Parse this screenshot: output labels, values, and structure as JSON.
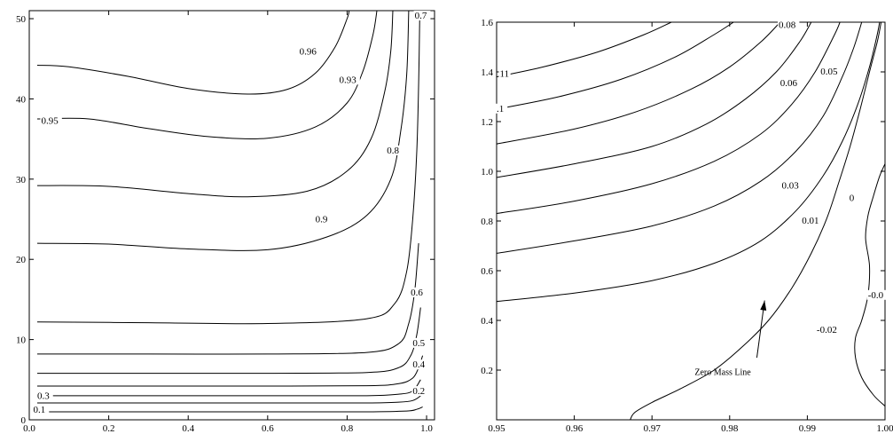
{
  "chart_data": [
    {
      "type": "line",
      "title": "",
      "xlabel": "",
      "ylabel": "",
      "xlim": [
        0,
        1.02
      ],
      "ylim": [
        0,
        51
      ],
      "x_ticks": [
        "0.0",
        "0.2",
        "0.4",
        "0.6",
        "0.8",
        "1.0"
      ],
      "y_ticks": [
        "0",
        "10",
        "20",
        "30",
        "40",
        "50"
      ],
      "grid": false,
      "series": [
        {
          "label": "0.1",
          "points": [
            [
              0.02,
              1.0
            ],
            [
              0.3,
              1.0
            ],
            [
              0.6,
              1.0
            ],
            [
              0.85,
              1.0
            ],
            [
              0.95,
              1.1
            ],
            [
              0.975,
              1.3
            ],
            [
              0.99,
              1.6
            ]
          ]
        },
        {
          "label": "0.2",
          "points": [
            [
              0.02,
              2.1
            ],
            [
              0.3,
              2.1
            ],
            [
              0.6,
              2.1
            ],
            [
              0.85,
              2.1
            ],
            [
              0.93,
              2.2
            ],
            [
              0.965,
              2.4
            ],
            [
              0.985,
              3.0
            ],
            [
              0.99,
              3.5
            ]
          ]
        },
        {
          "label": "0.3",
          "points": [
            [
              0.02,
              3.0
            ],
            [
              0.3,
              3.0
            ],
            [
              0.6,
              3.0
            ],
            [
              0.85,
              3.0
            ],
            [
              0.93,
              3.2
            ],
            [
              0.965,
              3.6
            ],
            [
              0.985,
              5.0
            ]
          ]
        },
        {
          "label": "0.4",
          "points": [
            [
              0.02,
              4.2
            ],
            [
              0.3,
              4.2
            ],
            [
              0.6,
              4.2
            ],
            [
              0.85,
              4.25
            ],
            [
              0.93,
              4.5
            ],
            [
              0.965,
              5.2
            ],
            [
              0.98,
              6.5
            ],
            [
              0.99,
              8
            ]
          ]
        },
        {
          "label": "0.5",
          "points": [
            [
              0.02,
              5.8
            ],
            [
              0.3,
              5.8
            ],
            [
              0.6,
              5.8
            ],
            [
              0.85,
              5.9
            ],
            [
              0.93,
              6.5
            ],
            [
              0.96,
              8.0
            ],
            [
              0.975,
              10.5
            ],
            [
              0.985,
              14
            ]
          ]
        },
        {
          "label": "",
          "points": [
            [
              0.02,
              8.2
            ],
            [
              0.3,
              8.2
            ],
            [
              0.6,
              8.2
            ],
            [
              0.85,
              8.4
            ],
            [
              0.93,
              9.5
            ],
            [
              0.955,
              12.0
            ],
            [
              0.97,
              16
            ],
            [
              0.98,
              22
            ]
          ]
        },
        {
          "label": "0.6",
          "points": [
            [
              0.02,
              12.2
            ],
            [
              0.3,
              12.1
            ],
            [
              0.6,
              12.0
            ],
            [
              0.85,
              12.6
            ],
            [
              0.92,
              14.5
            ],
            [
              0.95,
              18.5
            ],
            [
              0.965,
              25
            ],
            [
              0.975,
              33
            ],
            [
              0.98,
              42
            ],
            [
              0.983,
              51
            ]
          ]
        },
        {
          "label": "0.7",
          "points": [
            [
              0.02,
              22.0
            ],
            [
              0.2,
              21.9
            ],
            [
              0.4,
              21.3
            ],
            [
              0.6,
              21.2
            ],
            [
              0.75,
              22.8
            ],
            [
              0.85,
              25.5
            ],
            [
              0.91,
              30
            ],
            [
              0.935,
              36
            ],
            [
              0.95,
              43
            ],
            [
              0.955,
              51
            ]
          ]
        },
        {
          "label": "0.8",
          "points": [
            [
              0.02,
              29.2
            ],
            [
              0.2,
              29.1
            ],
            [
              0.4,
              28.2
            ],
            [
              0.55,
              27.8
            ],
            [
              0.7,
              28.5
            ],
            [
              0.8,
              31
            ],
            [
              0.86,
              35
            ],
            [
              0.895,
              41
            ],
            [
              0.91,
              46
            ],
            [
              0.915,
              51
            ]
          ]
        },
        {
          "label": "0.9",
          "points": [
            [
              0.02,
              37.5
            ],
            [
              0.15,
              37.5
            ],
            [
              0.3,
              36.3
            ],
            [
              0.45,
              35.3
            ],
            [
              0.6,
              35.1
            ],
            [
              0.72,
              36.5
            ],
            [
              0.8,
              39.5
            ],
            [
              0.84,
              43.5
            ],
            [
              0.865,
              48
            ],
            [
              0.875,
              51
            ]
          ]
        },
        {
          "label": "0.95",
          "points": [
            [
              0.02,
              44.2
            ],
            [
              0.1,
              44.0
            ],
            [
              0.25,
              42.8
            ],
            [
              0.4,
              41.3
            ],
            [
              0.55,
              40.6
            ],
            [
              0.65,
              41.2
            ],
            [
              0.72,
              43.2
            ],
            [
              0.77,
              46.5
            ],
            [
              0.8,
              50
            ],
            [
              0.805,
              51
            ]
          ]
        }
      ],
      "contour_labels": [
        {
          "text": "0.1",
          "x": 0.01,
          "y": 0.9
        },
        {
          "text": "0.3",
          "x": 0.02,
          "y": 2.6
        },
        {
          "text": "0.2",
          "x": 0.965,
          "y": 3.2
        },
        {
          "text": "0.4",
          "x": 0.965,
          "y": 6.5
        },
        {
          "text": "0.5",
          "x": 0.965,
          "y": 9.2
        },
        {
          "text": "0.6",
          "x": 0.96,
          "y": 15.5
        },
        {
          "text": "0.9",
          "x": 0.72,
          "y": 24.6
        },
        {
          "text": "0.8",
          "x": 0.9,
          "y": 33.2
        },
        {
          "text": "0.95",
          "x": 0.03,
          "y": 36.9
        },
        {
          "text": "0.93",
          "x": 0.78,
          "y": 42.0
        },
        {
          "text": "0.96",
          "x": 0.68,
          "y": 45.5
        },
        {
          "text": "0.7",
          "x": 0.97,
          "y": 50.0
        }
      ]
    },
    {
      "type": "line",
      "title": "",
      "xlabel": "",
      "ylabel": "",
      "xlim": [
        0.95,
        1.0
      ],
      "ylim": [
        0,
        1.6
      ],
      "x_ticks": [
        "0.95",
        "0.96",
        "0.97",
        "0.98",
        "0.99",
        "1.00"
      ],
      "y_ticks": [
        "0.2",
        "0.4",
        "0.6",
        "0.8",
        "1.0",
        "1.2",
        "1.4",
        "1.6"
      ],
      "grid": false,
      "series": [
        {
          "label": "0",
          "points": [
            [
              0.9672,
              0.0
            ],
            [
              0.9678,
              0.03
            ],
            [
              0.97,
              0.07
            ],
            [
              0.974,
              0.13
            ],
            [
              0.978,
              0.2
            ],
            [
              0.9815,
              0.29
            ],
            [
              0.985,
              0.4
            ],
            [
              0.988,
              0.53
            ],
            [
              0.9905,
              0.67
            ],
            [
              0.9925,
              0.81
            ],
            [
              0.994,
              0.95
            ],
            [
              0.9955,
              1.1
            ],
            [
              0.9968,
              1.25
            ],
            [
              0.998,
              1.4
            ],
            [
              0.999,
              1.52
            ],
            [
              0.9995,
              1.6
            ]
          ]
        },
        {
          "label": "0.01",
          "points": [
            [
              0.95,
              0.476
            ],
            [
              0.96,
              0.51
            ],
            [
              0.97,
              0.56
            ],
            [
              0.978,
              0.63
            ],
            [
              0.984,
              0.72
            ],
            [
              0.9885,
              0.84
            ],
            [
              0.992,
              0.98
            ],
            [
              0.9945,
              1.12
            ],
            [
              0.9965,
              1.27
            ],
            [
              0.998,
              1.42
            ],
            [
              0.999,
              1.55
            ],
            [
              0.9993,
              1.6
            ]
          ]
        },
        {
          "label": "0.03",
          "points": [
            [
              0.95,
              0.67
            ],
            [
              0.96,
              0.72
            ],
            [
              0.97,
              0.78
            ],
            [
              0.978,
              0.86
            ],
            [
              0.984,
              0.96
            ],
            [
              0.9885,
              1.08
            ],
            [
              0.992,
              1.22
            ],
            [
              0.9945,
              1.38
            ],
            [
              0.996,
              1.5
            ],
            [
              0.997,
              1.6
            ]
          ]
        },
        {
          "label": "",
          "points": [
            [
              0.95,
              0.83
            ],
            [
              0.96,
              0.88
            ],
            [
              0.97,
              0.95
            ],
            [
              0.978,
              1.04
            ],
            [
              0.984,
              1.15
            ],
            [
              0.988,
              1.27
            ],
            [
              0.991,
              1.4
            ],
            [
              0.9935,
              1.55
            ],
            [
              0.9942,
              1.6
            ]
          ]
        },
        {
          "label": "0.05",
          "points": [
            [
              0.95,
              0.975
            ],
            [
              0.96,
              1.03
            ],
            [
              0.97,
              1.1
            ],
            [
              0.977,
              1.19
            ],
            [
              0.982,
              1.29
            ],
            [
              0.986,
              1.4
            ],
            [
              0.989,
              1.52
            ],
            [
              0.9905,
              1.6
            ]
          ]
        },
        {
          "label": "0.06",
          "points": [
            [
              0.95,
              1.11
            ],
            [
              0.96,
              1.17
            ],
            [
              0.968,
              1.24
            ],
            [
              0.975,
              1.33
            ],
            [
              0.98,
              1.42
            ],
            [
              0.984,
              1.52
            ],
            [
              0.9865,
              1.6
            ]
          ]
        },
        {
          "label": "",
          "points": [
            [
              0.95,
              1.25
            ],
            [
              0.958,
              1.3
            ],
            [
              0.966,
              1.37
            ],
            [
              0.973,
              1.46
            ],
            [
              0.978,
              1.55
            ],
            [
              0.9805,
              1.6
            ]
          ]
        },
        {
          "label": "0.08",
          "points": [
            [
              0.95,
              1.38
            ],
            [
              0.956,
              1.42
            ],
            [
              0.963,
              1.48
            ],
            [
              0.969,
              1.55
            ],
            [
              0.9725,
              1.6
            ]
          ]
        },
        {
          "label": "-0.02",
          "points": [
            [
              1.0,
              0.055
            ],
            [
              0.9985,
              0.1
            ],
            [
              0.997,
              0.17
            ],
            [
              0.9962,
              0.25
            ],
            [
              0.9962,
              0.33
            ],
            [
              0.997,
              0.4
            ],
            [
              0.9978,
              0.5
            ],
            [
              0.998,
              0.62
            ],
            [
              0.9975,
              0.73
            ],
            [
              0.9978,
              0.82
            ],
            [
              0.9985,
              0.9
            ],
            [
              0.9993,
              0.98
            ],
            [
              1.0,
              1.03
            ]
          ]
        }
      ],
      "contour_labels": [
        {
          "text": "0.08",
          "x": 0.9863,
          "y": 1.576
        },
        {
          "text": "0.05",
          "x": 0.9917,
          "y": 1.39
        },
        {
          "text": "0.06",
          "x": 0.9865,
          "y": 1.343
        },
        {
          "text": "0.03",
          "x": 0.9867,
          "y": 0.93
        },
        {
          "text": "0.01",
          "x": 0.9893,
          "y": 0.79
        },
        {
          "text": "0",
          "x": 0.9954,
          "y": 0.88
        },
        {
          "text": "-0.0",
          "x": 0.9978,
          "y": 0.49
        },
        {
          "text": "-0.02",
          "x": 0.9912,
          "y": 0.35
        },
        {
          "text": "11",
          "x": 0.9504,
          "y": 1.38
        },
        {
          "text": ".1",
          "x": 0.95,
          "y": 1.24
        }
      ],
      "annotations": [
        {
          "text": "Zero Mass Line",
          "x": 0.9755,
          "y": 0.18,
          "arrow_to": [
            0.9845,
            0.48
          ],
          "arrow_from": [
            0.9835,
            0.25
          ]
        }
      ]
    }
  ]
}
